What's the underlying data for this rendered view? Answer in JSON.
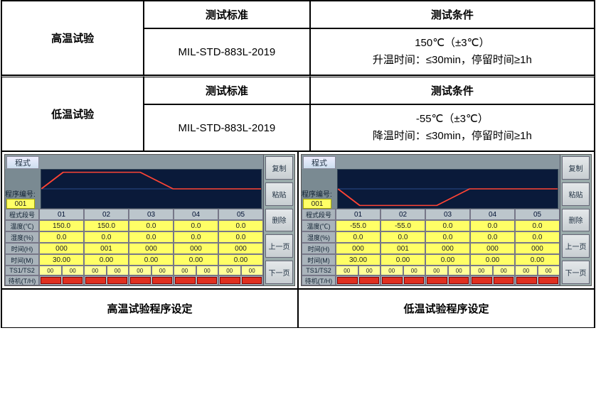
{
  "spec_rows": [
    {
      "name": "高温试验",
      "std_header": "测试标准",
      "cond_header": "测试条件",
      "std": "MIL-STD-883L-2019",
      "cond": "150℃（±3℃）\n升温时间：≤30min，停留时间≥1h"
    },
    {
      "name": "低温试验",
      "std_header": "测试标准",
      "cond_header": "测试条件",
      "std": "MIL-STD-883L-2019",
      "cond": "-55℃（±3℃）\n降温时间：≤30min，停留时间≥1h"
    }
  ],
  "screens": [
    {
      "tab": "程式",
      "prog_label": "程序编号:",
      "prog_val": "001",
      "chart_type": "high",
      "chart_color": "#ff4434",
      "col_header_label": "程式段号",
      "col_headers": [
        "01",
        "02",
        "03",
        "04",
        "05"
      ],
      "row_labels": [
        "温度(℃)",
        "湿度(%)",
        "时间(H)",
        "时间(M)",
        "TS1/TS2",
        "待机(T/H)"
      ],
      "data_rows": [
        [
          "150.0",
          "150.0",
          "0.0",
          "0.0",
          "0.0"
        ],
        [
          "0.0",
          "0.0",
          "0.0",
          "0.0",
          "0.0"
        ],
        [
          "000",
          "001",
          "000",
          "000",
          "000"
        ],
        [
          "30.00",
          "0.00",
          "0.00",
          "0.00",
          "0.00"
        ]
      ],
      "pair_rows": [
        [
          "00",
          "00",
          "00",
          "00",
          "00",
          "00",
          "00",
          "00",
          "00",
          "00"
        ]
      ],
      "side_buttons": [
        "复制",
        "粘贴",
        "删除",
        "上一页",
        "下一页"
      ]
    },
    {
      "tab": "程式",
      "prog_label": "程序编号:",
      "prog_val": "001",
      "chart_type": "low",
      "chart_color": "#ff4434",
      "col_header_label": "程式段号",
      "col_headers": [
        "01",
        "02",
        "03",
        "04",
        "05"
      ],
      "row_labels": [
        "温度(℃)",
        "湿度(%)",
        "时间(H)",
        "时间(M)",
        "TS1/TS2",
        "待机(T/H)"
      ],
      "data_rows": [
        [
          "-55.0",
          "-55.0",
          "0.0",
          "0.0",
          "0.0"
        ],
        [
          "0.0",
          "0.0",
          "0.0",
          "0.0",
          "0.0"
        ],
        [
          "000",
          "001",
          "000",
          "000",
          "000"
        ],
        [
          "30.00",
          "0.00",
          "0.00",
          "0.00",
          "0.00"
        ]
      ],
      "pair_rows": [
        [
          "00",
          "00",
          "00",
          "00",
          "00",
          "00",
          "00",
          "00",
          "00",
          "00"
        ]
      ],
      "side_buttons": [
        "复制",
        "粘贴",
        "删除",
        "上一页",
        "下一页"
      ]
    }
  ],
  "captions": [
    "高温试验程序设定",
    "低温试验程序设定"
  ],
  "colors": {
    "yellow": "#ffff66",
    "screen_bg": "#7a8a92",
    "chart_bg": "#0a1a3a",
    "red": "#e03020"
  }
}
